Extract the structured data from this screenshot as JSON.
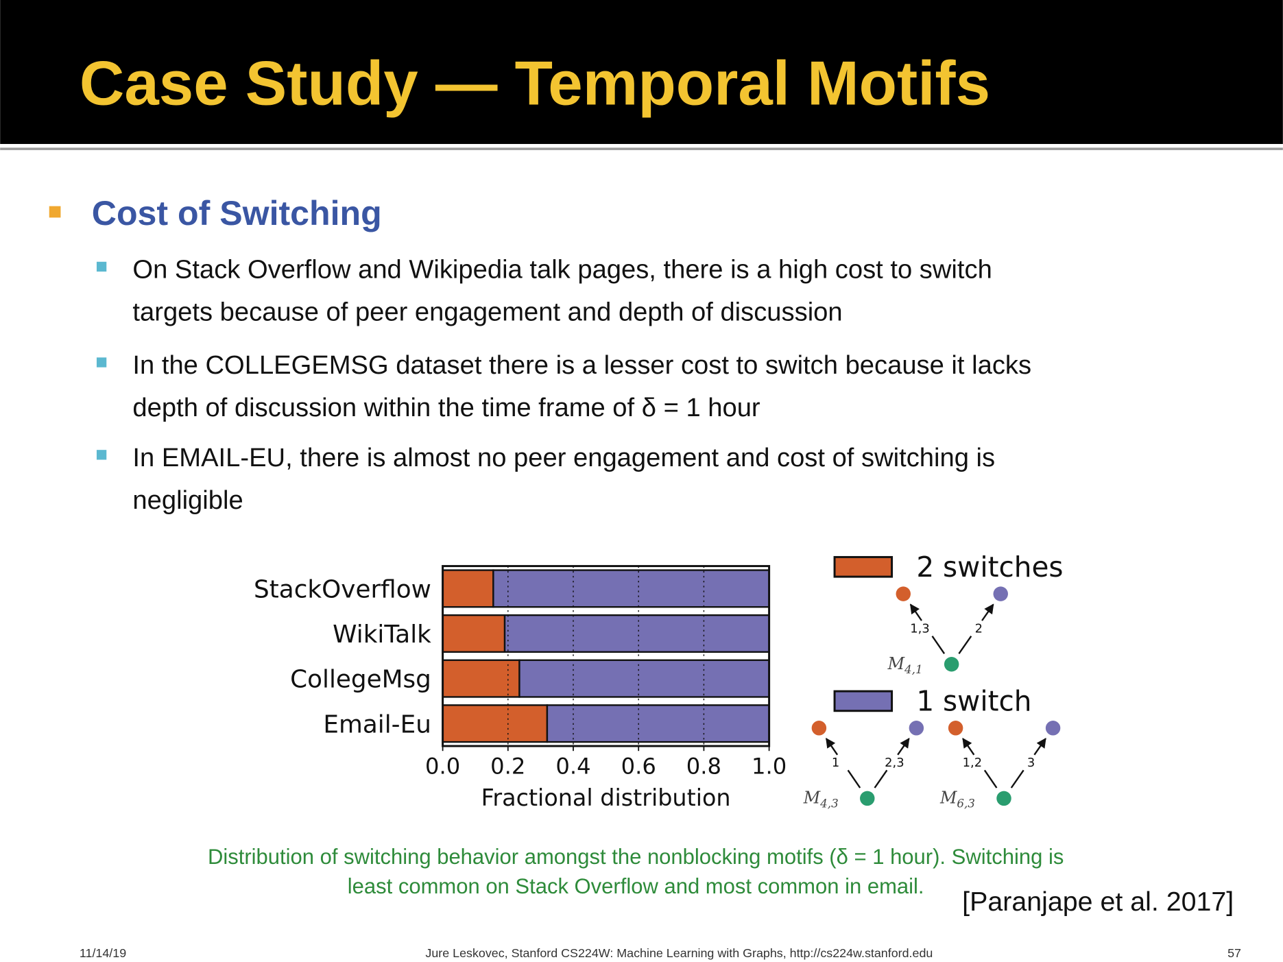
{
  "header": {
    "title": "Case Study — Temporal Motifs"
  },
  "section": {
    "heading": "Cost of Switching",
    "bullets": [
      [
        "On Stack Overflow and Wikipedia talk pages, there is a high cost to switch",
        "targets because of peer engagement and depth of discussion"
      ],
      [
        "In the COLLEGEMSG dataset there is a lesser cost to switch because it lacks",
        "depth of discussion within the time frame of δ = 1 hour"
      ],
      [
        "In EMAIL-EU, there is almost no peer engagement and cost of switching is",
        "negligible"
      ]
    ]
  },
  "chart_data": {
    "type": "bar",
    "orientation": "horizontal",
    "stacked": true,
    "categories": [
      "StackOverflow",
      "WikiTalk",
      "CollegeMsg",
      "Email-Eu"
    ],
    "series": [
      {
        "name": "2 switches",
        "color": "#d35f2c",
        "values": [
          0.155,
          0.19,
          0.235,
          0.32
        ]
      },
      {
        "name": "1 switch",
        "color": "#7570b3",
        "values": [
          0.845,
          0.81,
          0.765,
          0.68
        ]
      }
    ],
    "xlim": [
      0,
      1
    ],
    "xticks": [
      {
        "value": 0,
        "label": "0.0"
      },
      {
        "value": 0.2,
        "label": "0.2"
      },
      {
        "value": 0.4,
        "label": "0.4"
      },
      {
        "value": 0.6,
        "label": "0.6"
      },
      {
        "value": 0.8,
        "label": "0.8"
      },
      {
        "value": 1,
        "label": "1.0"
      }
    ],
    "xlabel": "Fractional distribution",
    "grid": true
  },
  "motifs": [
    {
      "name": "M",
      "subscript": "4,1",
      "edge_labels": [
        "1,3",
        "2"
      ]
    },
    {
      "name": "M",
      "subscript": "4,3",
      "edge_labels": [
        "1",
        "2,3"
      ]
    },
    {
      "name": "M",
      "subscript": "6,3",
      "edge_labels": [
        "1,2",
        "3"
      ]
    }
  ],
  "caption": [
    "Distribution of switching behavior amongst the nonblocking motifs (δ = 1 hour). Switching is",
    "least common on Stack Overflow and most common in email."
  ],
  "citation": "[Paranjape et al. 2017]",
  "footer": {
    "date": "11/14/19",
    "credit": "Jure Leskovec, Stanford CS224W: Machine Learning with Graphs, http://cs224w.stanford.edu",
    "page": "57"
  }
}
